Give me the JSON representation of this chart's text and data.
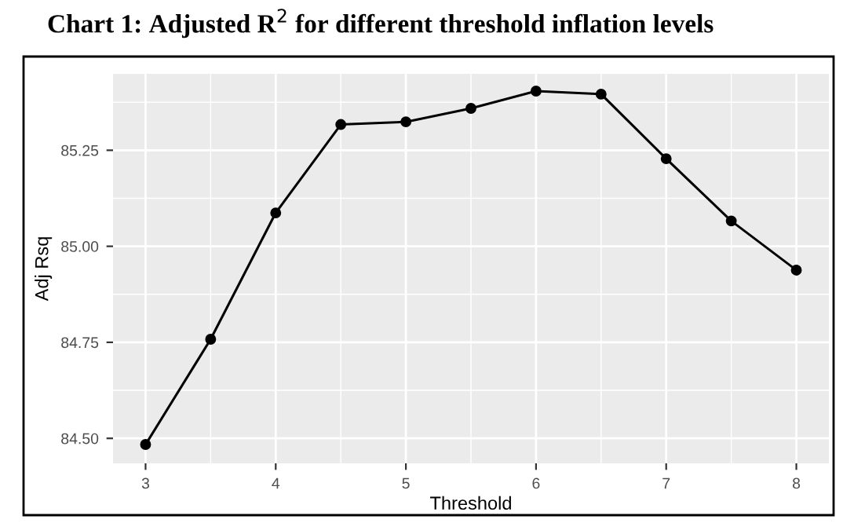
{
  "chart_data": {
    "type": "line",
    "title": "Chart 1: Adjusted R$^{2}$ for different threshold inflation levels",
    "xlabel": "Threshold",
    "ylabel": "Adj Rsq",
    "x": [
      3,
      3.5,
      4,
      4.5,
      5,
      5.5,
      6,
      6.5,
      7,
      7.5,
      8
    ],
    "series": [
      {
        "color": "#000000",
        "values": [
          84.484,
          84.758,
          85.087,
          85.317,
          85.324,
          85.359,
          85.404,
          85.396,
          85.228,
          85.066,
          84.938
        ]
      }
    ],
    "xlim": [
      2.75,
      8.25
    ],
    "ylim": [
      84.435,
      85.449
    ],
    "xticks": [
      3,
      4,
      5,
      6,
      7,
      8
    ],
    "yticks": [
      {
        "value": 84.5,
        "label": "84.50"
      },
      {
        "value": 84.75,
        "label": "84.75"
      },
      {
        "value": 85.0,
        "label": "85.00"
      },
      {
        "value": 85.25,
        "label": "85.25"
      }
    ],
    "grid": true,
    "marker": "circle",
    "line_style": "solid",
    "legend": false
  }
}
